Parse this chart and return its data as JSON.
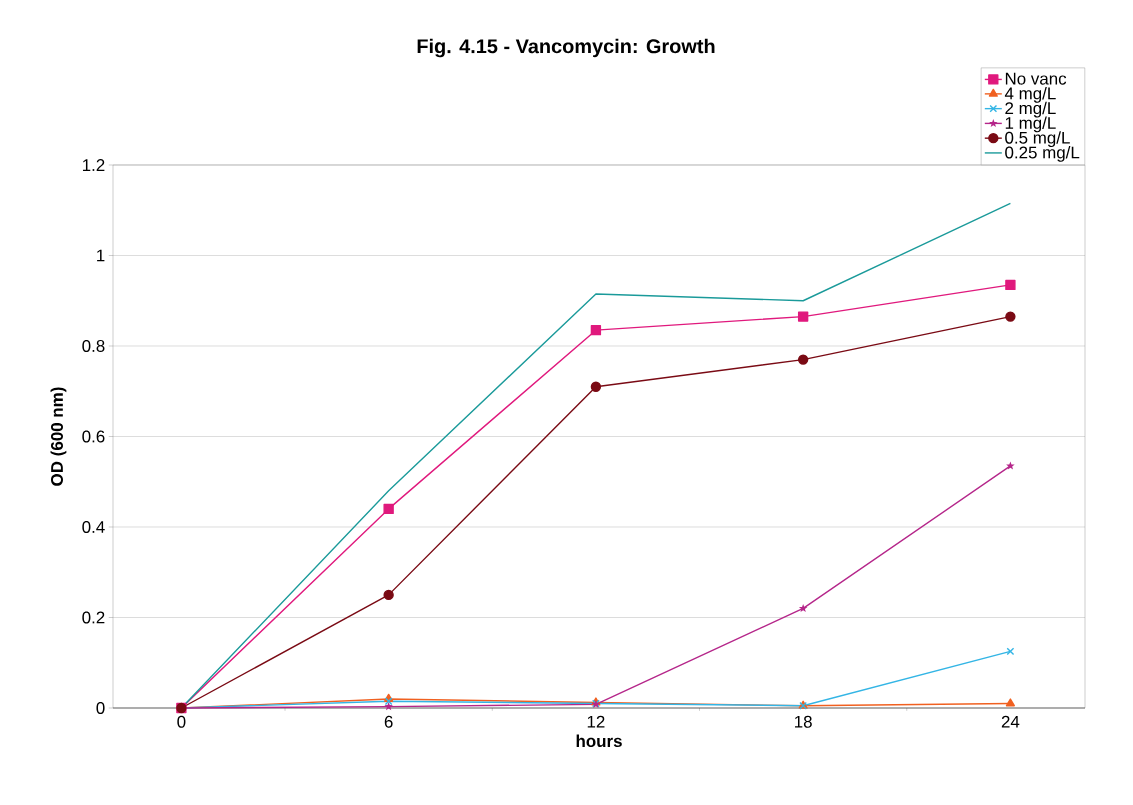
{
  "chart_data": {
    "type": "line",
    "title": "Fig. 4.15 - Vancomycin: Growth",
    "xlabel": "hours",
    "ylabel": "OD  (600 nm)",
    "categories": [
      "0",
      "6",
      "12",
      "18",
      "24"
    ],
    "series": [
      {
        "name": "No vanc",
        "color": "#e0197d",
        "marker": "square",
        "values": [
          0,
          0.44,
          0.835,
          0.865,
          0.935
        ]
      },
      {
        "name": "4 mg/L",
        "color": "#f06020",
        "marker": "triangle",
        "values": [
          0,
          0.02,
          0.012,
          0.005,
          0.01
        ]
      },
      {
        "name": "2 mg/L",
        "color": "#33b5e5",
        "marker": "cross",
        "values": [
          0,
          0.015,
          0.01,
          0.005,
          0.125
        ]
      },
      {
        "name": "1 mg/L",
        "color": "#b5268a",
        "marker": "star",
        "values": [
          0,
          0.003,
          0.008,
          0.22,
          0.535
        ]
      },
      {
        "name": "0.5 mg/L",
        "color": "#7a0a14",
        "marker": "circle",
        "values": [
          0,
          0.25,
          0.71,
          0.77,
          0.865
        ]
      },
      {
        "name": "0.25 mg/L",
        "color": "#1a9a9a",
        "marker": "none",
        "values": [
          0,
          0.48,
          0.915,
          0.9,
          1.115
        ]
      }
    ],
    "ylim": [
      0,
      1.2
    ],
    "yticks": [
      0,
      0.2,
      0.4,
      0.6,
      0.8,
      1,
      1.2
    ],
    "grid": "y",
    "legend": "top right",
    "line_style": "solid"
  }
}
